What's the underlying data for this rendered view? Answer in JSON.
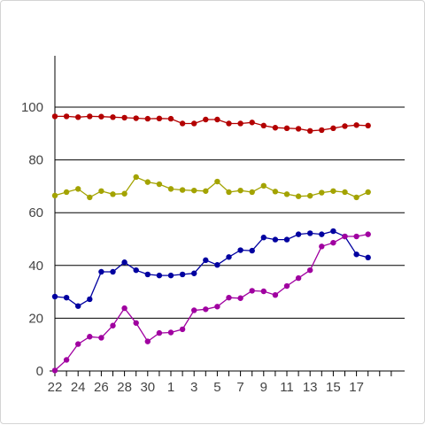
{
  "chart_data": {
    "type": "line",
    "categories": [
      "22",
      "23",
      "24",
      "25",
      "26",
      "27",
      "28",
      "29",
      "30",
      "31",
      "1",
      "2",
      "3",
      "4",
      "5",
      "6",
      "7",
      "8",
      "9",
      "10",
      "11",
      "12",
      "13",
      "14",
      "15",
      "16",
      "17",
      "18"
    ],
    "x_tick_labels": [
      "22",
      "24",
      "26",
      "28",
      "30",
      "1",
      "3",
      "5",
      "7",
      "9",
      "11",
      "13",
      "15",
      "17"
    ],
    "ylim": [
      0,
      120
    ],
    "y_ticks": [
      0,
      20,
      40,
      60,
      80,
      100
    ],
    "y_tick_labels": [
      "0",
      "20",
      "40",
      "60",
      "80",
      "100"
    ],
    "grid": "horizontal",
    "title": "",
    "xlabel": "",
    "ylabel": "",
    "series": [
      {
        "color": "#b30000",
        "values": [
          96.5,
          96.5,
          96.2,
          96.5,
          96.4,
          96.2,
          96.0,
          95.8,
          95.6,
          95.7,
          95.6,
          93.8,
          93.8,
          95.3,
          95.3,
          93.8,
          93.8,
          94.2,
          93.0,
          92.2,
          92.0,
          91.8,
          91.0,
          91.3,
          92.0,
          92.8,
          93.2,
          93.0
        ]
      },
      {
        "color": "#a3a300",
        "values": [
          66.5,
          67.8,
          69.0,
          65.8,
          68.2,
          67.0,
          67.2,
          73.5,
          71.6,
          70.8,
          69.0,
          68.6,
          68.4,
          68.2,
          71.8,
          67.8,
          68.4,
          67.8,
          70.2,
          68.0,
          67.0,
          66.2,
          66.4,
          67.6,
          68.2,
          67.8,
          65.8,
          67.8
        ]
      },
      {
        "color": "#0000a0",
        "values": [
          28.2,
          27.8,
          24.6,
          27.2,
          37.6,
          37.6,
          41.2,
          38.2,
          36.6,
          36.2,
          36.2,
          36.6,
          37.0,
          42.0,
          40.2,
          43.2,
          45.8,
          45.6,
          50.6,
          49.8,
          49.8,
          51.8,
          52.2,
          51.8,
          53.0,
          51.0,
          44.2,
          43.0
        ]
      },
      {
        "color": "#a000a0",
        "values": [
          0.2,
          4.2,
          10.2,
          13.0,
          12.6,
          17.2,
          23.8,
          18.2,
          11.2,
          14.4,
          14.6,
          15.8,
          23.0,
          23.4,
          24.4,
          27.8,
          27.6,
          30.4,
          30.2,
          28.8,
          32.2,
          35.2,
          38.2,
          47.2,
          48.6,
          51.0,
          51.0,
          51.8
        ]
      }
    ]
  }
}
